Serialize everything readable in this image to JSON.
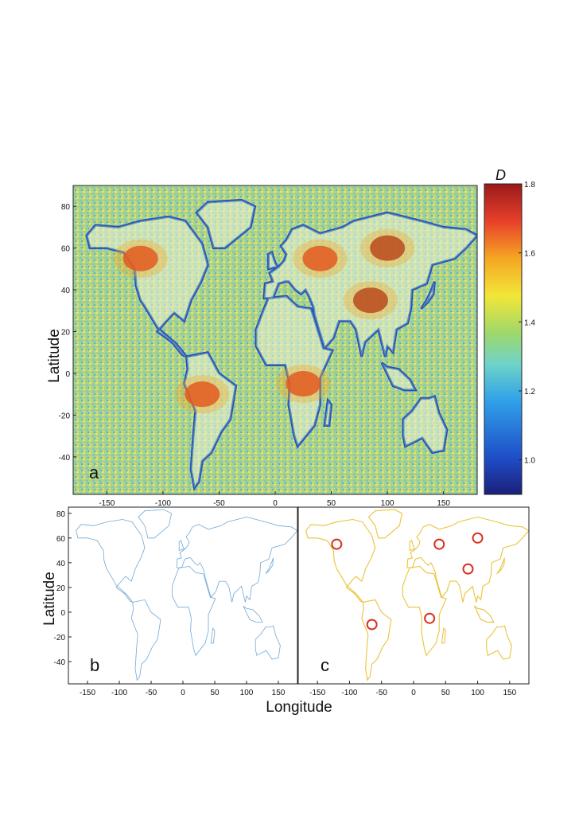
{
  "figure": {
    "panel_letters": [
      "a",
      "b",
      "c"
    ],
    "ylabel": "Latitude",
    "xlabel": "Longitude"
  },
  "chart_data": [
    {
      "type": "heatmap",
      "panel": "a",
      "subject": "world map",
      "xlabel": "",
      "ylabel": "Latitude",
      "xlim": [
        -180,
        180
      ],
      "ylim": [
        -58,
        90
      ],
      "xticks": [
        -150,
        -100,
        -50,
        0,
        50,
        100,
        150
      ],
      "yticks": [
        -40,
        -20,
        0,
        20,
        40,
        60,
        80
      ],
      "regions_high_D": [
        {
          "lon": 100,
          "lat": 60,
          "D": 1.7
        },
        {
          "lon": 85,
          "lat": 35,
          "D": 1.7
        },
        {
          "lon": 40,
          "lat": 55,
          "D": 1.65
        },
        {
          "lon": -120,
          "lat": 55,
          "D": 1.6
        },
        {
          "lon": -65,
          "lat": -10,
          "D": 1.6
        },
        {
          "lon": 25,
          "lat": -5,
          "D": 1.6
        }
      ],
      "colorbar": {
        "label": "D",
        "range": [
          0.9,
          1.8
        ],
        "ticks": [
          1.0,
          1.2,
          1.4,
          1.6,
          1.8
        ],
        "colors": [
          "#1b1f7a",
          "#1f4fc8",
          "#2fa0e8",
          "#6fd3c9",
          "#9fd86a",
          "#f2e637",
          "#f5a623",
          "#e8402a",
          "#9a1a1a"
        ]
      },
      "grid": false
    },
    {
      "type": "heatmap",
      "panel": "b",
      "subject": "coastlines",
      "xlabel": "Longitude",
      "ylabel": "Latitude",
      "xlim": [
        -180,
        180
      ],
      "ylim": [
        -58,
        85
      ],
      "xticks": [
        -150,
        -100,
        -50,
        0,
        50,
        100,
        150
      ],
      "yticks": [
        -40,
        -20,
        0,
        20,
        40,
        60,
        80
      ],
      "grid": false
    },
    {
      "type": "heatmap",
      "panel": "c",
      "subject": "coastlines and mountain belts",
      "xlabel": "Longitude",
      "ylabel": "",
      "xlim": [
        -180,
        180
      ],
      "ylim": [
        -58,
        85
      ],
      "xticks": [
        -150,
        -100,
        -50,
        0,
        50,
        100,
        150
      ],
      "yticks": [],
      "grid": false
    }
  ]
}
